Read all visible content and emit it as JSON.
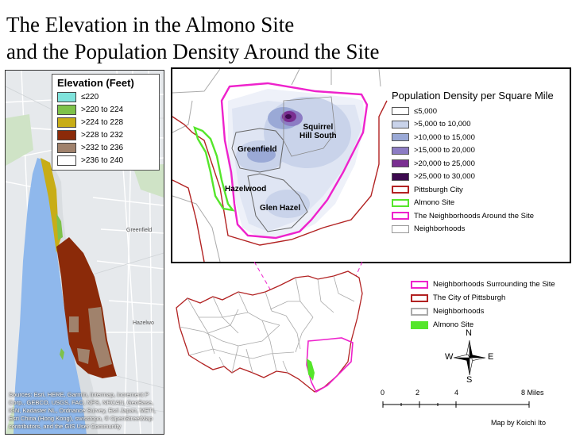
{
  "title": {
    "line1": "The Elevation in the Almono Site",
    "line2": "and the Population Density Around the Site"
  },
  "elevation_legend": {
    "title": "Elevation (Feet)",
    "items": [
      {
        "label": "≤220",
        "color": "#7fe3dc"
      },
      {
        "label": ">220 to 224",
        "color": "#7ec24a"
      },
      {
        "label": ">224 to 228",
        "color": "#c8ad16"
      },
      {
        "label": ">228 to 232",
        "color": "#8b2a09"
      },
      {
        "label": ">232 to 236",
        "color": "#a0826c"
      },
      {
        "label": ">236 to 240",
        "color": "#ffffff"
      }
    ]
  },
  "elevation_map": {
    "place_labels": [
      "Greenfield",
      "Hazelwo"
    ],
    "credits": "Sources: Esri, HERE, Garmin, Intermap, increment P Corp., GEBCO, USGS, FAO, NPS, NRCAN, GeoBase, IGN, Kadaster NL, Ordnance Survey, Esri Japan, METI, Esri China (Hong Kong), swisstopo, © OpenStreetMap contributors, and the GIS User Community"
  },
  "population_legend": {
    "title": "Population Density per Square Mile",
    "items": [
      {
        "label": "≤5,000",
        "swatch": "#ffffff",
        "border": "#555555"
      },
      {
        "label": ">5,000 to 10,000",
        "swatch": "#c9d3ea",
        "border": "#555555"
      },
      {
        "label": ">10,000 to 15,000",
        "swatch": "#9aa9d6",
        "border": "#555555"
      },
      {
        "label": ">15,000 to 20,000",
        "swatch": "#8c7cc4",
        "border": "#555555"
      },
      {
        "label": ">20,000 to 25,000",
        "swatch": "#7a2e91",
        "border": "#555555"
      },
      {
        "label": ">25,000 to 30,000",
        "swatch": "#3d0a4f",
        "border": "#555555"
      },
      {
        "label": "Pittsburgh City",
        "swatch": "#ffffff",
        "border": "#b22222"
      },
      {
        "label": "Almono Site",
        "swatch": "#ffffff",
        "border": "#55e62b"
      },
      {
        "label": "The Neighborhoods Around the Site",
        "swatch": "#ffffff",
        "border": "#ee22cc"
      },
      {
        "label": "Neighborhoods",
        "swatch": "#ffffff",
        "border": "#999999"
      }
    ]
  },
  "neighborhood_labels": {
    "squirrel_hill_1": "Squirrel",
    "squirrel_hill_2": "Hill South",
    "greenfield": "Greenfield",
    "hazelwood": "Hazelwood",
    "glen_hazel": "Glen Hazel"
  },
  "city_legend": {
    "items": [
      {
        "label": "Neighborhoods Surrounding the Site",
        "swatch": "#ffffff",
        "border": "#ee22cc"
      },
      {
        "label": "The City of Pittsburgh",
        "swatch": "#ffffff",
        "border": "#b22222"
      },
      {
        "label": "Neighborhoods",
        "swatch": "#ffffff",
        "border": "#aaaaaa"
      },
      {
        "label": "Almono Site",
        "swatch": "#55e62b",
        "border": "#55e62b"
      }
    ]
  },
  "north_arrow": {
    "n": "N",
    "s": "S",
    "e": "E",
    "w": "W"
  },
  "scale_bar": {
    "labels": [
      "0",
      "2",
      "4",
      "8 Miles"
    ]
  },
  "author_credit": "Map by Koichi Ito",
  "colors": {
    "city_boundary": "#b22222",
    "site": "#55e62b",
    "surrounding": "#ee22cc",
    "river": "#8fb8ec"
  }
}
